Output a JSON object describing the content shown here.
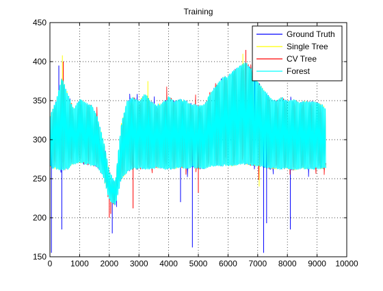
{
  "chart_data": {
    "type": "line",
    "title": "Training",
    "xlabel": "",
    "ylabel": "",
    "xlim": [
      0,
      10000
    ],
    "ylim": [
      150,
      450
    ],
    "x_ticks": [
      0,
      1000,
      2000,
      3000,
      4000,
      5000,
      6000,
      7000,
      8000,
      9000,
      10000
    ],
    "y_ticks": [
      150,
      200,
      250,
      300,
      350,
      400,
      450
    ],
    "grid": "dotted",
    "legend_position": "top-right",
    "n_samples": 9300,
    "envelope_knots": {
      "x": [
        0,
        200,
        400,
        600,
        800,
        1000,
        1200,
        1400,
        1600,
        1800,
        2000,
        2200,
        2400,
        2600,
        2800,
        3000,
        3200,
        3400,
        3600,
        3800,
        4000,
        4200,
        4400,
        4600,
        4800,
        5000,
        5200,
        5400,
        5600,
        5800,
        6000,
        6200,
        6400,
        6600,
        6800,
        7000,
        7200,
        7400,
        7600,
        7800,
        8000,
        8200,
        8400,
        8600,
        8800,
        9000,
        9200,
        9300
      ],
      "low": [
        265,
        262,
        260,
        262,
        268,
        270,
        268,
        266,
        264,
        252,
        222,
        215,
        248,
        258,
        262,
        262,
        262,
        262,
        264,
        262,
        262,
        262,
        264,
        262,
        264,
        262,
        262,
        265,
        266,
        266,
        266,
        266,
        268,
        268,
        266,
        266,
        264,
        262,
        262,
        262,
        262,
        260,
        262,
        262,
        262,
        262,
        262,
        264
      ],
      "high": [
        330,
        350,
        380,
        360,
        340,
        352,
        348,
        345,
        330,
        300,
        260,
        245,
        320,
        350,
        355,
        350,
        360,
        350,
        345,
        348,
        355,
        350,
        352,
        350,
        346,
        344,
        345,
        360,
        370,
        380,
        382,
        390,
        395,
        400,
        390,
        375,
        365,
        355,
        350,
        355,
        350,
        352,
        348,
        350,
        350,
        348,
        345,
        340
      ]
    },
    "series": [
      {
        "name": "Ground Truth",
        "color": "#0000ff",
        "spikes": [
          [
            50,
            155
          ],
          [
            400,
            185
          ],
          [
            2100,
            180
          ],
          [
            4400,
            220
          ],
          [
            4800,
            162
          ],
          [
            7200,
            155
          ],
          [
            7300,
            193
          ],
          [
            8100,
            185
          ],
          [
            300,
            395
          ],
          [
            6900,
            400
          ]
        ]
      },
      {
        "name": "Single Tree",
        "color": "#ffff00",
        "spikes": [
          [
            420,
            408
          ],
          [
            6500,
            410
          ],
          [
            3300,
            375
          ],
          [
            7050,
            240
          ]
        ]
      },
      {
        "name": "CV Tree",
        "color": "#ff0000",
        "spikes": [
          [
            450,
            400
          ],
          [
            6600,
            415
          ],
          [
            2000,
            200
          ],
          [
            2050,
            205
          ],
          [
            2800,
            212
          ],
          [
            5000,
            232
          ]
        ]
      },
      {
        "name": "Forest",
        "color": "#00ffff",
        "spikes": []
      }
    ]
  }
}
